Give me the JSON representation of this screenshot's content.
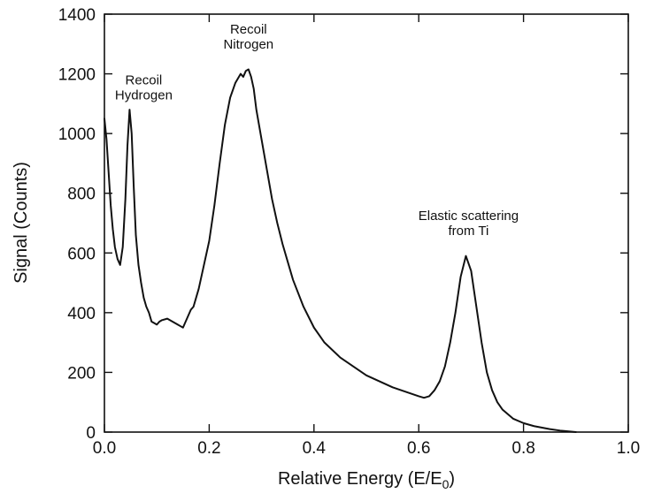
{
  "chart_data": {
    "type": "line",
    "title": "",
    "xlabel": "Relative Energy (E/E",
    "xlabel_subscript": "0",
    "xlabel_suffix": ")",
    "ylabel": "Signal (Counts)",
    "xlim": [
      0,
      1.0
    ],
    "ylim": [
      0,
      1400
    ],
    "xticks": [
      "0.0",
      "0.2",
      "0.4",
      "0.6",
      "0.8",
      "1.0"
    ],
    "yticks": [
      "0",
      "200",
      "400",
      "600",
      "800",
      "1000",
      "1200",
      "1400"
    ],
    "grid": false,
    "legend": "none",
    "line_color": "#111111",
    "annotations": [
      {
        "lines": [
          "Recoil",
          "Hydrogen"
        ],
        "x": 0.075,
        "y": 1165
      },
      {
        "lines": [
          "Recoil",
          "Nitrogen"
        ],
        "x": 0.275,
        "y": 1335
      },
      {
        "lines": [
          "Elastic scattering",
          "from Ti"
        ],
        "x": 0.695,
        "y": 710
      }
    ],
    "series": [
      {
        "x": [
          0.0,
          0.004,
          0.008,
          0.012,
          0.016,
          0.02,
          0.025,
          0.03,
          0.035,
          0.04,
          0.044,
          0.048,
          0.052,
          0.056,
          0.06,
          0.065,
          0.07,
          0.075,
          0.08,
          0.085,
          0.09,
          0.095,
          0.1,
          0.105,
          0.11,
          0.12,
          0.13,
          0.14,
          0.145,
          0.15,
          0.155,
          0.16,
          0.165,
          0.17,
          0.18,
          0.19,
          0.2,
          0.21,
          0.22,
          0.23,
          0.24,
          0.25,
          0.26,
          0.265,
          0.27,
          0.275,
          0.28,
          0.285,
          0.29,
          0.3,
          0.31,
          0.32,
          0.33,
          0.34,
          0.35,
          0.36,
          0.38,
          0.4,
          0.42,
          0.45,
          0.5,
          0.55,
          0.6,
          0.61,
          0.62,
          0.63,
          0.64,
          0.65,
          0.66,
          0.67,
          0.68,
          0.69,
          0.7,
          0.71,
          0.72,
          0.73,
          0.74,
          0.75,
          0.76,
          0.78,
          0.8,
          0.82,
          0.85,
          0.87,
          0.9
        ],
        "y": [
          1050,
          980,
          870,
          760,
          680,
          620,
          580,
          560,
          620,
          780,
          960,
          1080,
          1000,
          820,
          660,
          560,
          500,
          450,
          420,
          400,
          370,
          365,
          360,
          370,
          375,
          380,
          370,
          360,
          355,
          350,
          370,
          390,
          410,
          420,
          480,
          560,
          640,
          760,
          900,
          1030,
          1120,
          1170,
          1200,
          1190,
          1210,
          1215,
          1190,
          1150,
          1080,
          980,
          880,
          780,
          700,
          630,
          570,
          510,
          420,
          350,
          300,
          250,
          190,
          150,
          120,
          115,
          120,
          140,
          170,
          220,
          300,
          400,
          520,
          590,
          540,
          420,
          300,
          200,
          140,
          100,
          75,
          45,
          30,
          20,
          10,
          5,
          0
        ]
      }
    ]
  }
}
